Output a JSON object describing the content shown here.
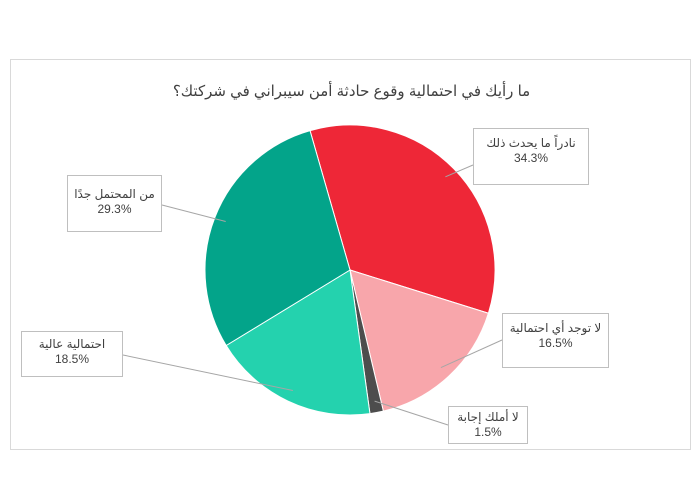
{
  "chart_data": {
    "type": "pie",
    "title": "ما رأيك في احتمالية وقوع حادثة أمن سيبراني في شركتك؟",
    "slices": [
      {
        "label": "نادراً ما يحدث ذلك",
        "value": 34.3,
        "value_label": "34.3%",
        "color": "#ee2737"
      },
      {
        "label": "لا توجد أي احتمالية",
        "value": 16.5,
        "value_label": "16.5%",
        "color": "#f8a6ab"
      },
      {
        "label": "لا أملك إجابة",
        "value": 1.5,
        "value_label": "1.5%",
        "color": "#4d4d4d"
      },
      {
        "label": "احتمالية عالية",
        "value": 18.5,
        "value_label": "18.5%",
        "color": "#24d2ae"
      },
      {
        "label": "من المحتمل جدًا",
        "value": 29.3,
        "value_label": "29.3%",
        "color": "#03a48a"
      }
    ],
    "legend": "none"
  }
}
